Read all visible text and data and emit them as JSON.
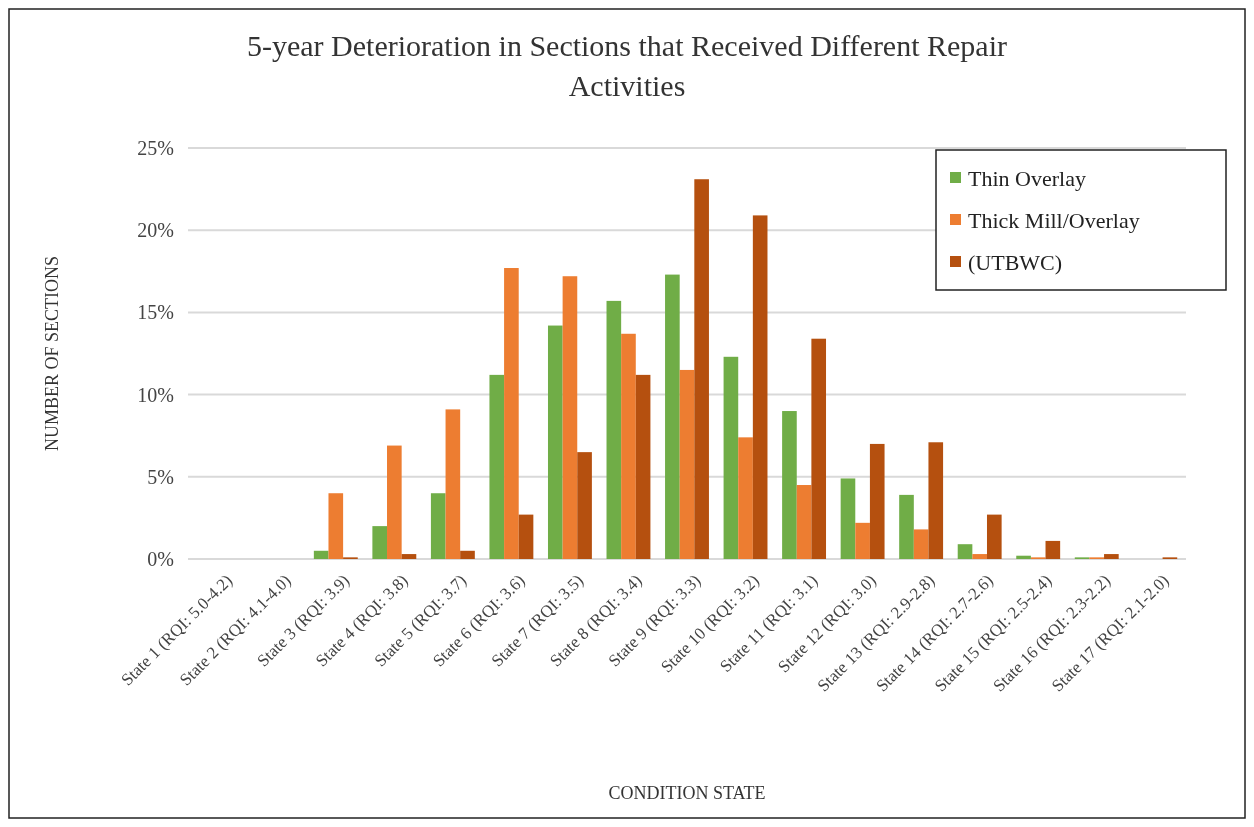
{
  "chart_data": {
    "type": "bar",
    "title": "5-year Deterioration in Sections that Received Different Repair Activities",
    "xlabel": "CONDITION STATE",
    "ylabel": "NUMBER OF SECTIONS",
    "categories": [
      "State 1 (RQI: 5.0-4.2)",
      "State 2 (RQI: 4.1-4.0)",
      "State 3 (RQI: 3.9)",
      "State 4 (RQI: 3.8)",
      "State 5 (RQI: 3.7)",
      "State 6 (RQI: 3.6)",
      "State 7 (RQI: 3.5)",
      "State 8 (RQI: 3.4)",
      "State 9 (RQI: 3.3)",
      "State 10 (RQI: 3.2)",
      "State 11 (RQI: 3.1)",
      "State 12 (RQI: 3.0)",
      "State 13 (RQI: 2.9-2.8)",
      "State 14 (RQI: 2.7-2.6)",
      "State 15 (RQI: 2.5-2.4)",
      "State 16 (RQI: 2.3-2.2)",
      "State 17 (RQI: 2.1-2.0)"
    ],
    "series": [
      {
        "name": "Thin Overlay",
        "color": "#70ad47",
        "values": [
          0,
          0,
          0.5,
          2.0,
          4.0,
          11.2,
          14.2,
          15.7,
          17.3,
          12.3,
          9.0,
          4.9,
          3.9,
          0.9,
          0.2,
          0.1,
          0
        ]
      },
      {
        "name": "Thick Mill/Overlay",
        "color": "#ed7d31",
        "values": [
          0,
          0,
          4.0,
          6.9,
          9.1,
          17.7,
          17.2,
          13.7,
          11.5,
          7.4,
          4.5,
          2.2,
          1.8,
          0.3,
          0.1,
          0.1,
          0
        ]
      },
      {
        "name": "(UTBWC)",
        "color": "#b5500f",
        "values": [
          0,
          0,
          0.1,
          0.3,
          0.5,
          2.7,
          6.5,
          11.2,
          23.1,
          20.9,
          13.4,
          7.0,
          7.1,
          2.7,
          1.1,
          0.3,
          0.1
        ]
      }
    ],
    "ylim": [
      0,
      25
    ],
    "yticks": [
      {
        "value": 0,
        "label": "0%"
      },
      {
        "value": 5,
        "label": "5%"
      },
      {
        "value": 10,
        "label": "10%"
      },
      {
        "value": 15,
        "label": "15%"
      },
      {
        "value": 20,
        "label": "20%"
      },
      {
        "value": 25,
        "label": "25%"
      }
    ],
    "grid": "y",
    "legend": "top right"
  }
}
